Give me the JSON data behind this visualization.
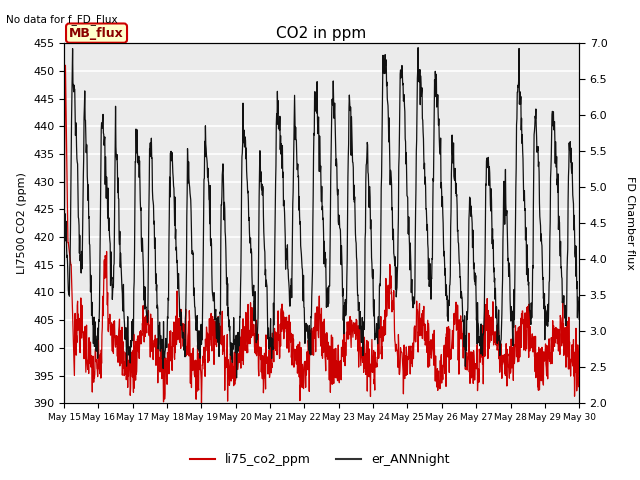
{
  "title": "CO2 in ppm",
  "top_left_text": "No data for f_FD_Flux",
  "ylabel_left": "LI7500 CO2 (ppm)",
  "ylabel_right": "FD Chamber flux",
  "ylim_left": [
    390,
    455
  ],
  "ylim_right": [
    2.0,
    7.0
  ],
  "yticks_left": [
    390,
    395,
    400,
    405,
    410,
    415,
    420,
    425,
    430,
    435,
    440,
    445,
    450,
    455
  ],
  "yticks_right": [
    2.0,
    2.5,
    3.0,
    3.5,
    4.0,
    4.5,
    5.0,
    5.5,
    6.0,
    6.5,
    7.0
  ],
  "xtick_labels": [
    "May 15",
    "May 16",
    "May 17",
    "May 18",
    "May 19",
    "May 20",
    "May 21",
    "May 22",
    "May 23",
    "May 24",
    "May 25",
    "May 26",
    "May 27",
    "May 28",
    "May 29",
    "May 30"
  ],
  "legend_entries": [
    "li75_co2_ppm",
    "er_ANNnight"
  ],
  "legend_colors": [
    "#cc0000",
    "#333333"
  ],
  "line_color_red": "#cc0000",
  "line_color_black": "#111111",
  "annotation_box_text": "MB_flux",
  "annotation_box_color": "#ffffcc",
  "annotation_box_edge": "#cc0000",
  "background_color": "#ebebeb",
  "background_color2": "#d8d8d8",
  "grid_color": "#ffffff",
  "fig_background": "#ffffff",
  "n_days": 15,
  "n_per_day": 96
}
